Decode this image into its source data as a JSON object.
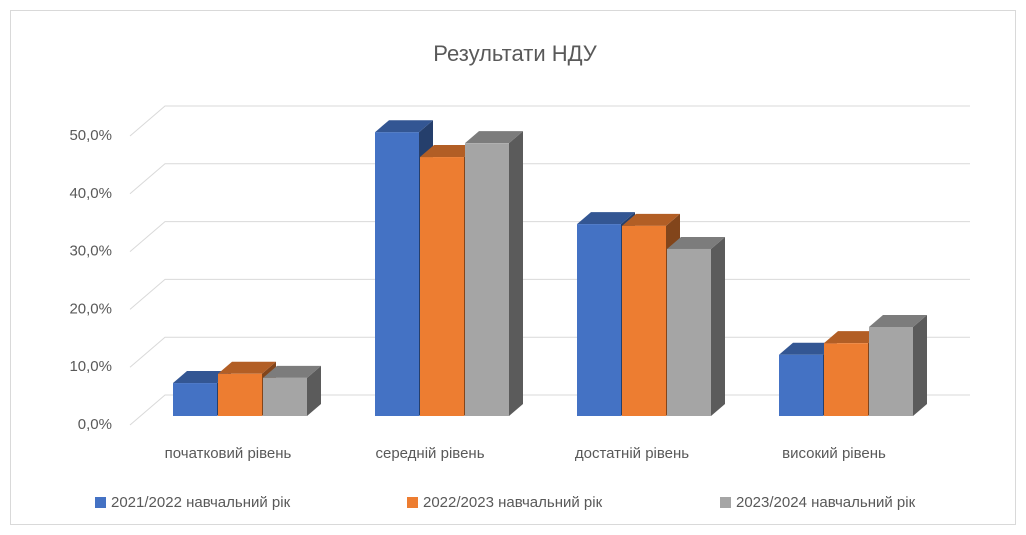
{
  "chart_data": {
    "type": "bar3d",
    "title": "Результати НДУ",
    "categories": [
      "початковий рівень",
      "середній рівень",
      "достатній рівень",
      "високий рівень"
    ],
    "series": [
      {
        "name": "2021/2022 навчальний рік",
        "color": "#4472c4",
        "values": [
          5.7,
          49.1,
          33.2,
          10.6
        ]
      },
      {
        "name": "2022/2023 навчальний рік",
        "color": "#ed7d31",
        "values": [
          7.3,
          44.8,
          32.9,
          12.6
        ]
      },
      {
        "name": "2023/2024 навчальний рік",
        "color": "#a5a5a5",
        "values": [
          6.6,
          47.2,
          28.9,
          15.4
        ]
      }
    ],
    "ylim": [
      0,
      50
    ],
    "yticks": [
      {
        "value": 0,
        "label": "0,0%"
      },
      {
        "value": 10,
        "label": "10,0%"
      },
      {
        "value": 20,
        "label": "20,0%"
      },
      {
        "value": 30,
        "label": "30,0%"
      },
      {
        "value": 40,
        "label": "40,0%"
      },
      {
        "value": 50,
        "label": "50,0%"
      }
    ],
    "grid": true,
    "legend": "bottom"
  }
}
